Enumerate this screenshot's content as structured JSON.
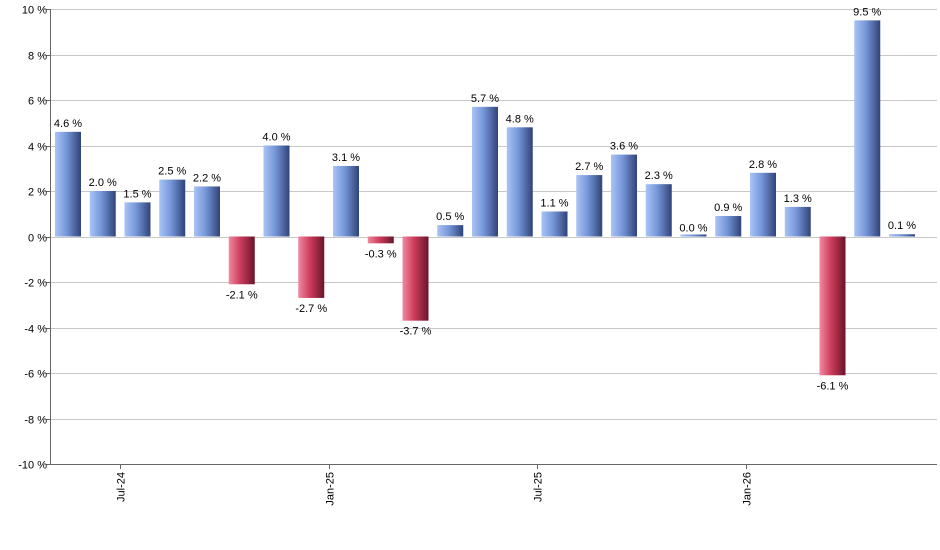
{
  "chart_data": {
    "type": "bar",
    "title": "",
    "xlabel": "",
    "ylabel": "",
    "ylim": [
      -10,
      10
    ],
    "y_ticks": [
      10,
      8,
      6,
      4,
      2,
      0,
      -2,
      -4,
      -6,
      -8,
      -10
    ],
    "y_tick_labels": [
      "10 %",
      "8 %",
      "6 %",
      "4 %",
      "2 %",
      "0 %",
      "-2 %",
      "-4 %",
      "-6 %",
      "-8 %",
      "-10 %"
    ],
    "grid": true,
    "categories": [
      "2024-06",
      "2024-07",
      "2024-08",
      "2024-09",
      "2024-10",
      "2024-11",
      "2024-12",
      "2025-01",
      "2025-02",
      "2025-03",
      "2025-04",
      "2025-05",
      "2025-06",
      "2025-07",
      "2025-08",
      "2025-09",
      "2025-10",
      "2025-11",
      "2025-12",
      "2026-01",
      "2026-02",
      "2026-03",
      "2026-04",
      "2026-05",
      "2026-06"
    ],
    "values": [
      4.6,
      2.0,
      1.5,
      2.5,
      2.2,
      -2.1,
      4.0,
      -2.7,
      3.1,
      -0.3,
      -3.7,
      0.5,
      5.7,
      4.8,
      1.1,
      2.7,
      3.6,
      2.3,
      0.0,
      0.9,
      2.8,
      1.3,
      -6.1,
      9.5,
      0.1
    ],
    "value_labels": [
      "4.6 %",
      "2.0 %",
      "1.5 %",
      "2.5 %",
      "2.2 %",
      "-2.1 %",
      "4.0 %",
      "-2.7 %",
      "3.1 %",
      "-0.3 %",
      "-3.7 %",
      "0.5 %",
      "5.7 %",
      "4.8 %",
      "1.1 %",
      "2.7 %",
      "3.6 %",
      "2.3 %",
      "0.0 %",
      "0.9 %",
      "2.8 %",
      "1.3 %",
      "-6.1 %",
      "9.5 %",
      "0.1 %"
    ],
    "x_tick_labels": [
      "Jul-24",
      "Jan-25",
      "Jul-25",
      "Jan-26"
    ],
    "x_tick_positions": [
      1.5,
      7.5,
      13.5,
      19.5
    ],
    "colors": {
      "positive_light": "#a9c4f5",
      "positive_mid": "#7595d8",
      "positive_dark": "#2f4378",
      "negative_light": "#f08a9f",
      "negative_mid": "#cc3c5c",
      "negative_dark": "#6a1428",
      "grid": "#c8c8c8"
    }
  }
}
